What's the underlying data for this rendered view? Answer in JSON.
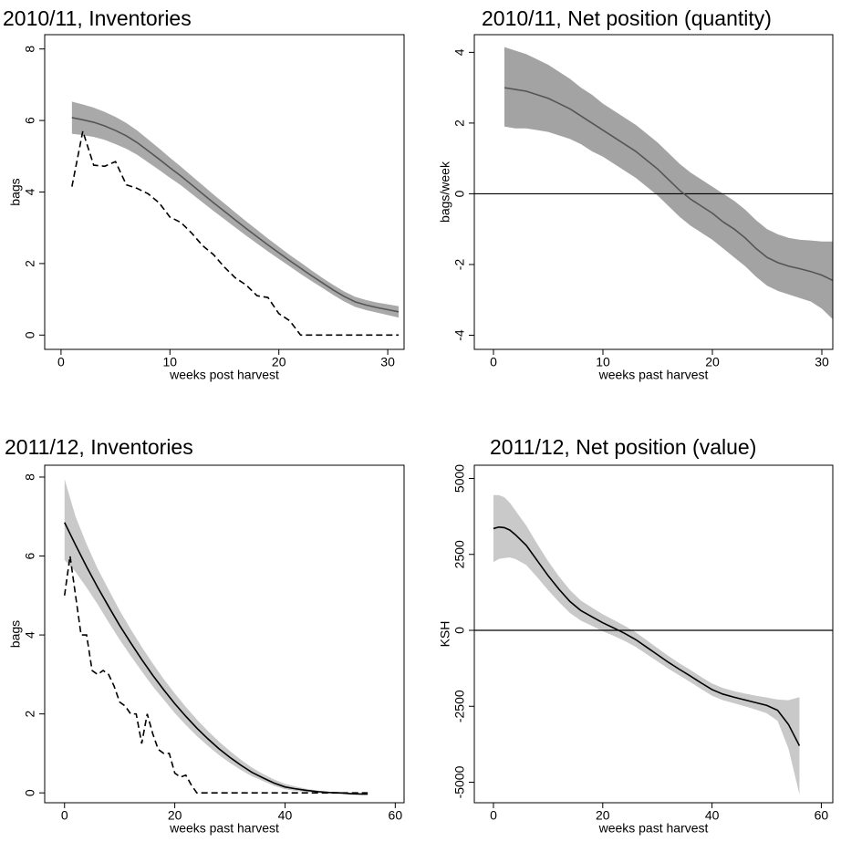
{
  "chart_data": [
    {
      "type": "line",
      "title": "2010/11, Inventories",
      "xlabel": "weeks post harvest",
      "ylabel": "bags",
      "xlim": [
        -1.5,
        31.5
      ],
      "ylim": [
        -0.4,
        8.4
      ],
      "xticks": [
        0,
        10,
        20,
        30
      ],
      "yticks": [
        0,
        2,
        4,
        6,
        8
      ],
      "band": {
        "color": "#a9a9a9",
        "x": [
          1,
          2,
          3,
          4,
          5,
          6,
          7,
          8,
          9,
          10,
          11,
          12,
          13,
          14,
          15,
          16,
          17,
          18,
          19,
          20,
          21,
          22,
          23,
          24,
          25,
          26,
          27,
          28,
          29,
          30,
          31
        ],
        "upper": [
          6.53,
          6.45,
          6.36,
          6.24,
          6.1,
          5.93,
          5.72,
          5.47,
          5.22,
          4.96,
          4.71,
          4.45,
          4.19,
          3.93,
          3.68,
          3.43,
          3.18,
          2.94,
          2.7,
          2.47,
          2.24,
          2.03,
          1.81,
          1.6,
          1.4,
          1.22,
          1.07,
          0.98,
          0.91,
          0.86,
          0.81
        ],
        "lower": [
          5.63,
          5.59,
          5.54,
          5.46,
          5.34,
          5.21,
          5.04,
          4.83,
          4.62,
          4.4,
          4.19,
          3.95,
          3.71,
          3.47,
          3.24,
          3.01,
          2.78,
          2.56,
          2.34,
          2.13,
          1.92,
          1.71,
          1.51,
          1.32,
          1.12,
          0.94,
          0.79,
          0.7,
          0.63,
          0.56,
          0.49
        ]
      },
      "series": [
        {
          "color": "#555555",
          "dash": "solid",
          "x": [
            1,
            2,
            3,
            4,
            5,
            6,
            7,
            8,
            9,
            10,
            11,
            12,
            13,
            14,
            15,
            16,
            17,
            18,
            19,
            20,
            21,
            22,
            23,
            24,
            25,
            26,
            27,
            28,
            29,
            30,
            31
          ],
          "values": [
            6.08,
            6.02,
            5.95,
            5.85,
            5.72,
            5.57,
            5.38,
            5.15,
            4.92,
            4.68,
            4.45,
            4.2,
            3.95,
            3.7,
            3.46,
            3.22,
            2.98,
            2.75,
            2.52,
            2.3,
            2.08,
            1.87,
            1.66,
            1.46,
            1.26,
            1.08,
            0.93,
            0.84,
            0.77,
            0.71,
            0.65
          ]
        },
        {
          "color": "#000000",
          "dash": "dashed",
          "x": [
            1,
            2,
            3,
            4,
            5,
            6,
            7,
            8,
            9,
            10,
            11,
            12,
            13,
            14,
            15,
            16,
            17,
            18,
            19,
            20,
            21,
            22,
            31
          ],
          "values": [
            4.15,
            5.7,
            4.75,
            4.72,
            4.85,
            4.2,
            4.1,
            3.95,
            3.7,
            3.3,
            3.15,
            2.85,
            2.5,
            2.25,
            1.9,
            1.6,
            1.4,
            1.1,
            1.05,
            0.6,
            0.4,
            0,
            0
          ]
        }
      ]
    },
    {
      "type": "line",
      "title": "2010/11, Net position (quantity)",
      "xlabel": "weeks past harvest",
      "ylabel": "bags/week",
      "xlim": [
        -1.75,
        31
      ],
      "ylim": [
        -4.4,
        4.5
      ],
      "xticks": [
        0,
        10,
        20,
        30
      ],
      "yticks": [
        -4,
        -2,
        0,
        2,
        4
      ],
      "reference_line": 0,
      "band": {
        "color": "#a3a3a3",
        "x": [
          1,
          2,
          3,
          4,
          5,
          6,
          7,
          8,
          9,
          10,
          11,
          12,
          13,
          14,
          15,
          16,
          17,
          18,
          19,
          20,
          21,
          22,
          23,
          24,
          25,
          26,
          27,
          28,
          29,
          30,
          31
        ],
        "upper": [
          4.15,
          4.05,
          3.95,
          3.8,
          3.65,
          3.45,
          3.25,
          3.0,
          2.8,
          2.55,
          2.35,
          2.15,
          1.95,
          1.7,
          1.45,
          1.15,
          0.85,
          0.6,
          0.4,
          0.2,
          0.0,
          -0.2,
          -0.45,
          -0.75,
          -1.0,
          -1.15,
          -1.25,
          -1.3,
          -1.32,
          -1.35,
          -1.35
        ],
        "lower": [
          1.9,
          1.85,
          1.85,
          1.8,
          1.75,
          1.65,
          1.55,
          1.4,
          1.2,
          1.05,
          0.85,
          0.65,
          0.45,
          0.2,
          -0.05,
          -0.35,
          -0.65,
          -0.9,
          -1.1,
          -1.3,
          -1.55,
          -1.8,
          -2.05,
          -2.35,
          -2.6,
          -2.75,
          -2.85,
          -2.95,
          -3.05,
          -3.25,
          -3.55
        ]
      },
      "series": [
        {
          "color": "#555555",
          "dash": "solid",
          "x": [
            1,
            2,
            3,
            4,
            5,
            6,
            7,
            8,
            9,
            10,
            11,
            12,
            13,
            14,
            15,
            16,
            17,
            18,
            19,
            20,
            21,
            22,
            23,
            24,
            25,
            26,
            27,
            28,
            29,
            30,
            31
          ],
          "values": [
            3.0,
            2.95,
            2.9,
            2.8,
            2.7,
            2.55,
            2.4,
            2.2,
            2.0,
            1.8,
            1.6,
            1.4,
            1.2,
            0.95,
            0.7,
            0.4,
            0.1,
            -0.15,
            -0.35,
            -0.55,
            -0.8,
            -1.0,
            -1.25,
            -1.55,
            -1.8,
            -1.95,
            -2.05,
            -2.12,
            -2.2,
            -2.3,
            -2.45
          ]
        }
      ]
    },
    {
      "type": "line",
      "title": "2011/12, Inventories",
      "xlabel": "weeks past harvest",
      "ylabel": "bags",
      "xlim": [
        -3.6,
        61.6
      ],
      "ylim": [
        -0.25,
        8.3
      ],
      "xticks": [
        0,
        20,
        40,
        60
      ],
      "yticks": [
        0,
        2,
        4,
        6,
        8
      ],
      "band": {
        "color": "#c9c9c9",
        "x": [
          0,
          2,
          4,
          6,
          8,
          10,
          12,
          14,
          16,
          18,
          20,
          22,
          24,
          26,
          28,
          30,
          32,
          34,
          36,
          38,
          40,
          42,
          44,
          46,
          48,
          50,
          52,
          54,
          55
        ],
        "upper": [
          7.95,
          7.0,
          6.3,
          5.68,
          5.15,
          4.62,
          4.15,
          3.7,
          3.28,
          2.88,
          2.52,
          2.18,
          1.86,
          1.57,
          1.3,
          1.06,
          0.84,
          0.64,
          0.48,
          0.34,
          0.23,
          0.16,
          0.1,
          0.06,
          0.03,
          0.02,
          0.0,
          -0.01,
          -0.01
        ],
        "lower": [
          5.9,
          5.6,
          5.2,
          4.78,
          4.32,
          3.88,
          3.47,
          3.08,
          2.7,
          2.36,
          2.02,
          1.72,
          1.44,
          1.19,
          0.96,
          0.76,
          0.58,
          0.42,
          0.3,
          0.18,
          0.09,
          0.05,
          0.02,
          0.0,
          -0.02,
          -0.03,
          -0.05,
          -0.06,
          -0.06
        ]
      },
      "series": [
        {
          "color": "#000000",
          "dash": "solid",
          "x": [
            0,
            2,
            4,
            6,
            8,
            10,
            12,
            14,
            16,
            18,
            20,
            22,
            24,
            26,
            28,
            30,
            32,
            34,
            36,
            38,
            40,
            42,
            44,
            46,
            48,
            50,
            52,
            54,
            55
          ],
          "values": [
            6.85,
            6.28,
            5.73,
            5.21,
            4.72,
            4.24,
            3.8,
            3.38,
            2.98,
            2.61,
            2.26,
            1.94,
            1.64,
            1.37,
            1.12,
            0.9,
            0.7,
            0.52,
            0.38,
            0.25,
            0.15,
            0.1,
            0.06,
            0.03,
            0.01,
            0.0,
            -0.02,
            -0.03,
            -0.03
          ]
        },
        {
          "color": "#000000",
          "dash": "dashed",
          "x": [
            0,
            1,
            2,
            3,
            4,
            5,
            6,
            7,
            8,
            9,
            10,
            11,
            12,
            13,
            14,
            15,
            16,
            17,
            18,
            19,
            20,
            21,
            22,
            23,
            24,
            55
          ],
          "values": [
            5.0,
            6.0,
            5.0,
            4.0,
            4.0,
            3.1,
            3.0,
            3.1,
            3.0,
            2.7,
            2.3,
            2.2,
            2.0,
            2.0,
            1.25,
            2.0,
            1.5,
            1.1,
            1.0,
            1.0,
            0.5,
            0.4,
            0.45,
            0.2,
            0,
            0
          ]
        }
      ]
    },
    {
      "type": "line",
      "title": "2011/12, Net position (value)",
      "xlabel": "weeks past harvest",
      "ylabel": "KSH",
      "xlim": [
        -3.5,
        62.1
      ],
      "ylim": [
        -5675,
        5435
      ],
      "xticks": [
        0,
        20,
        40,
        60
      ],
      "yticks": [
        -5000,
        -2500,
        0,
        2500,
        5000
      ],
      "reference_line": 0,
      "band": {
        "color": "#c9c9c9",
        "x": [
          0,
          1,
          2,
          3,
          4,
          6,
          8,
          10,
          12,
          14,
          16,
          18,
          20,
          22,
          24,
          26,
          28,
          30,
          32,
          34,
          36,
          38,
          40,
          42,
          44,
          46,
          48,
          50,
          52,
          54,
          56
        ],
        "upper": [
          4450,
          4450,
          4380,
          4200,
          3950,
          3450,
          2850,
          2280,
          1770,
          1330,
          980,
          750,
          530,
          340,
          150,
          -60,
          -320,
          -580,
          -840,
          -1080,
          -1300,
          -1530,
          -1750,
          -1900,
          -2000,
          -2080,
          -2150,
          -2210,
          -2280,
          -2300,
          -2200
        ],
        "lower": [
          2250,
          2350,
          2380,
          2400,
          2350,
          2150,
          1750,
          1320,
          930,
          570,
          320,
          150,
          -30,
          -180,
          -350,
          -540,
          -780,
          -1020,
          -1260,
          -1480,
          -1700,
          -1930,
          -2150,
          -2300,
          -2400,
          -2500,
          -2610,
          -2730,
          -2980,
          -3900,
          -5400
        ]
      },
      "series": [
        {
          "color": "#000000",
          "dash": "solid",
          "x": [
            0,
            1,
            2,
            3,
            4,
            6,
            8,
            10,
            12,
            14,
            16,
            18,
            20,
            22,
            24,
            26,
            28,
            30,
            32,
            34,
            36,
            38,
            40,
            42,
            44,
            46,
            48,
            50,
            52,
            54,
            56
          ],
          "values": [
            3350,
            3400,
            3380,
            3300,
            3150,
            2800,
            2300,
            1800,
            1350,
            950,
            650,
            450,
            250,
            80,
            -100,
            -300,
            -550,
            -800,
            -1050,
            -1280,
            -1500,
            -1730,
            -1950,
            -2100,
            -2200,
            -2290,
            -2380,
            -2470,
            -2630,
            -3100,
            -3800
          ]
        }
      ]
    }
  ]
}
